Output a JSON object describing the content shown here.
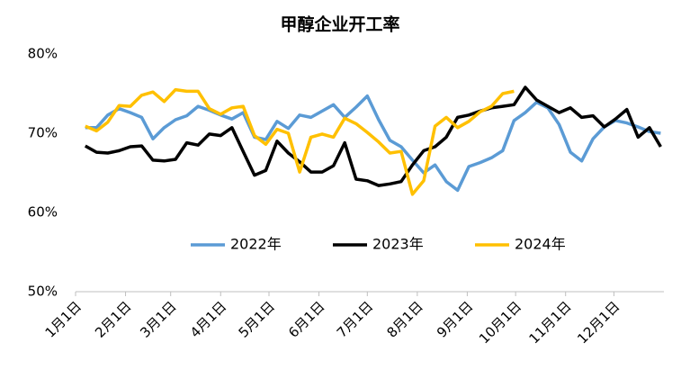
{
  "chart_data": {
    "type": "line",
    "title": "甲醇企业开工率",
    "x": [
      6,
      13,
      20,
      27,
      34,
      41,
      48,
      55,
      62,
      69,
      76,
      83,
      90,
      97,
      104,
      111,
      118,
      125,
      132,
      139,
      146,
      153,
      160,
      167,
      174,
      181,
      188,
      195,
      202,
      209,
      216,
      223,
      230,
      237,
      244,
      251,
      258,
      265,
      272,
      279,
      286,
      293,
      300,
      307,
      314,
      321,
      328,
      335,
      342,
      349,
      356,
      363
    ],
    "xlim": [
      0,
      365
    ],
    "xticks": [
      {
        "value": 0,
        "label": "1月1日"
      },
      {
        "value": 31,
        "label": "2月1日"
      },
      {
        "value": 59,
        "label": "3月1日"
      },
      {
        "value": 90,
        "label": "4月1日"
      },
      {
        "value": 120,
        "label": "5月1日"
      },
      {
        "value": 151,
        "label": "6月1日"
      },
      {
        "value": 181,
        "label": "7月1日"
      },
      {
        "value": 212,
        "label": "8月1日"
      },
      {
        "value": 243,
        "label": "9月1日"
      },
      {
        "value": 273,
        "label": "10月1日"
      },
      {
        "value": 304,
        "label": "11月1日"
      },
      {
        "value": 334,
        "label": "12月1日"
      }
    ],
    "ylim": [
      50,
      80
    ],
    "yticks": [
      {
        "value": 50,
        "label": "50%"
      },
      {
        "value": 60,
        "label": "60%"
      },
      {
        "value": 70,
        "label": "70%"
      },
      {
        "value": 80,
        "label": "80%"
      }
    ],
    "grid": false,
    "legend": "bottom",
    "series": [
      {
        "name": "2022年",
        "color": "#5b9bd5",
        "values": [
          70.7,
          70.7,
          72.3,
          73.1,
          72.6,
          72.0,
          69.3,
          70.7,
          71.7,
          72.2,
          73.4,
          72.9,
          72.3,
          71.8,
          72.6,
          69.5,
          69.2,
          71.5,
          70.6,
          72.3,
          72.0,
          72.8,
          73.6,
          72.0,
          73.3,
          74.7,
          71.7,
          69.1,
          68.3,
          66.6,
          65.0,
          66.0,
          63.9,
          62.8,
          65.8,
          66.3,
          66.9,
          67.8,
          71.6,
          72.6,
          73.9,
          73.2,
          71.1,
          67.6,
          66.5,
          69.3,
          70.8,
          71.6,
          71.3,
          70.8,
          70.2,
          70.0
        ]
      },
      {
        "name": "2023年",
        "color": "#000000",
        "values": [
          68.4,
          67.6,
          67.5,
          67.8,
          68.3,
          68.4,
          66.6,
          66.5,
          66.7,
          68.8,
          68.5,
          69.9,
          69.7,
          70.7,
          67.7,
          64.7,
          65.3,
          69.0,
          67.5,
          66.4,
          65.1,
          65.1,
          65.9,
          68.8,
          64.2,
          64.0,
          63.4,
          63.6,
          63.9,
          66.0,
          67.8,
          68.3,
          69.5,
          72.0,
          72.3,
          72.8,
          73.2,
          73.4,
          73.6,
          75.8,
          74.2,
          73.4,
          72.6,
          73.2,
          72.0,
          72.2,
          70.8,
          71.8,
          73.0,
          69.5,
          70.7,
          68.3
        ]
      },
      {
        "name": "2024年",
        "color": "#ffc000",
        "values": [
          70.9,
          70.3,
          71.4,
          73.5,
          73.4,
          74.8,
          75.2,
          74.0,
          75.5,
          75.3,
          75.3,
          73.1,
          72.4,
          73.2,
          73.4,
          69.7,
          68.6,
          70.5,
          70.0,
          65.1,
          69.5,
          69.9,
          69.5,
          71.9,
          71.2,
          70.1,
          68.9,
          67.5,
          67.7,
          62.3,
          64.0,
          70.9,
          72.0,
          70.7,
          71.5,
          72.7,
          73.4,
          75.0,
          75.3,
          null,
          null,
          null,
          null,
          null,
          null,
          null,
          null,
          null,
          null,
          null,
          null,
          null
        ]
      }
    ]
  }
}
